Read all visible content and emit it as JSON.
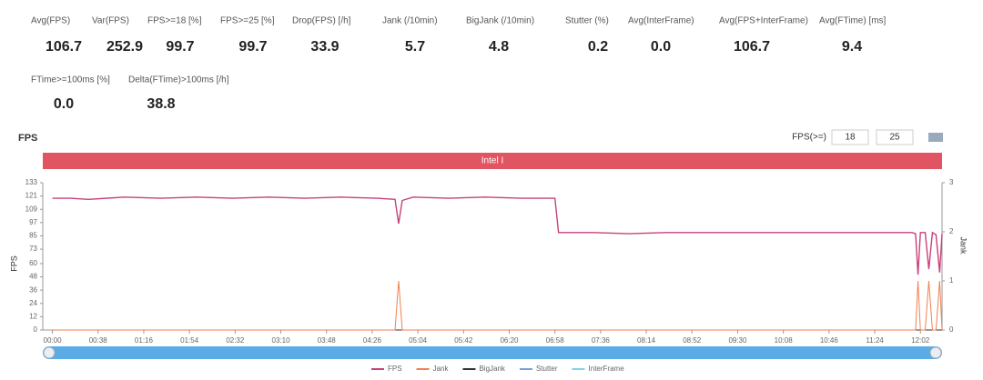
{
  "metrics": [
    {
      "label": "Avg(FPS)",
      "value": "106.7"
    },
    {
      "label": "Var(FPS)",
      "value": "252.9"
    },
    {
      "label": "FPS>=18 [%]",
      "value": "99.7"
    },
    {
      "label": "FPS>=25 [%]",
      "value": "99.7"
    },
    {
      "label": "Drop(FPS) [/h]",
      "value": "33.9"
    },
    {
      "label": "Jank (/10min)",
      "value": "5.7"
    },
    {
      "label": "BigJank (/10min)",
      "value": "4.8"
    },
    {
      "label": "Stutter (%)",
      "value": "0.2"
    },
    {
      "label": "Avg(InterFrame)",
      "value": "0.0"
    },
    {
      "label": "Avg(FPS+InterFrame)",
      "value": "106.7"
    },
    {
      "label": "Avg(FTime) [ms]",
      "value": "9.4"
    },
    {
      "label": "FTime>=100ms [%]",
      "value": "0.0"
    },
    {
      "label": "Delta(FTime)>100ms [/h]",
      "value": "38.8"
    }
  ],
  "chart_data": {
    "type": "line",
    "title": "FPS",
    "threshold_label": "FPS(>=)",
    "thresholds": [
      "18",
      "25"
    ],
    "band_label": "Intel I",
    "band_color": "#e05561",
    "ylabel": "FPS",
    "y2label": "Jank",
    "x": [
      0,
      15,
      30,
      60,
      90,
      120,
      150,
      180,
      210,
      240,
      270,
      285,
      288,
      291,
      300,
      330,
      360,
      390,
      418,
      421,
      450,
      480,
      510,
      540,
      570,
      600,
      630,
      660,
      690,
      715,
      718,
      720,
      722,
      726,
      729,
      732,
      735,
      738,
      740
    ],
    "xlim": [
      -8,
      740
    ],
    "xticks": [
      {
        "value": 0,
        "label": "00:00"
      },
      {
        "value": 38,
        "label": "00:38"
      },
      {
        "value": 76,
        "label": "01:16"
      },
      {
        "value": 114,
        "label": "01:54"
      },
      {
        "value": 152,
        "label": "02:32"
      },
      {
        "value": 190,
        "label": "03:10"
      },
      {
        "value": 228,
        "label": "03:48"
      },
      {
        "value": 266,
        "label": "04:26"
      },
      {
        "value": 304,
        "label": "05:04"
      },
      {
        "value": 342,
        "label": "05:42"
      },
      {
        "value": 380,
        "label": "06:20"
      },
      {
        "value": 418,
        "label": "06:58"
      },
      {
        "value": 456,
        "label": "07:36"
      },
      {
        "value": 494,
        "label": "08:14"
      },
      {
        "value": 532,
        "label": "08:52"
      },
      {
        "value": 570,
        "label": "09:30"
      },
      {
        "value": 608,
        "label": "10:08"
      },
      {
        "value": 646,
        "label": "10:46"
      },
      {
        "value": 684,
        "label": "11:24"
      },
      {
        "value": 722,
        "label": "12:02"
      }
    ],
    "ylim": [
      0,
      133
    ],
    "yticks": [
      0,
      12,
      24,
      36,
      48,
      60,
      73,
      85,
      97,
      109,
      121,
      133
    ],
    "y2lim": [
      0,
      3
    ],
    "y2ticks": [
      0,
      1,
      2,
      3
    ],
    "series": [
      {
        "name": "FPS",
        "color": "#c8407a",
        "values": [
          119,
          119,
          118,
          120,
          119,
          120,
          119,
          120,
          119,
          120,
          119,
          118,
          96,
          117,
          120,
          119,
          120,
          119,
          119,
          88,
          88,
          87,
          88,
          88,
          88,
          88,
          88,
          88,
          88,
          88,
          87,
          50,
          88,
          88,
          55,
          88,
          86,
          52,
          87
        ]
      },
      {
        "name": "Jank",
        "color": "#f08050",
        "axis": "y2",
        "values": [
          0,
          0,
          0,
          0,
          0,
          0,
          0,
          0,
          0,
          0,
          0,
          0,
          1,
          0,
          0,
          0,
          0,
          0,
          0,
          0,
          0,
          0,
          0,
          0,
          0,
          0,
          0,
          0,
          0,
          0,
          0,
          1,
          0,
          0,
          1,
          0,
          0,
          1,
          0
        ]
      },
      {
        "name": "BigJank",
        "color": "#333333",
        "axis": "y2",
        "values": [
          0,
          0,
          0,
          0,
          0,
          0,
          0,
          0,
          0,
          0,
          0,
          0,
          0,
          0,
          0,
          0,
          0,
          0,
          0,
          0,
          0,
          0,
          0,
          0,
          0,
          0,
          0,
          0,
          0,
          0,
          0,
          0,
          0,
          0,
          0,
          0,
          0,
          0,
          0
        ]
      },
      {
        "name": "Stutter",
        "color": "#7aa0d8",
        "axis": "y2",
        "values": [
          0,
          0,
          0,
          0,
          0,
          0,
          0,
          0,
          0,
          0,
          0,
          0,
          0,
          0,
          0,
          0,
          0,
          0,
          0,
          0,
          0,
          0,
          0,
          0,
          0,
          0,
          0,
          0,
          0,
          0,
          0,
          0,
          0,
          0,
          0,
          0,
          0,
          0,
          0
        ]
      },
      {
        "name": "InterFrame",
        "color": "#7fd3e8",
        "axis": "y2",
        "values": [
          0,
          0,
          0,
          0,
          0,
          0,
          0,
          0,
          0,
          0,
          0,
          0,
          0,
          0,
          0,
          0,
          0,
          0,
          0,
          0,
          0,
          0,
          0,
          0,
          0,
          0,
          0,
          0,
          0,
          0,
          0,
          0,
          0,
          0,
          0,
          0,
          0,
          0,
          0
        ]
      }
    ]
  }
}
